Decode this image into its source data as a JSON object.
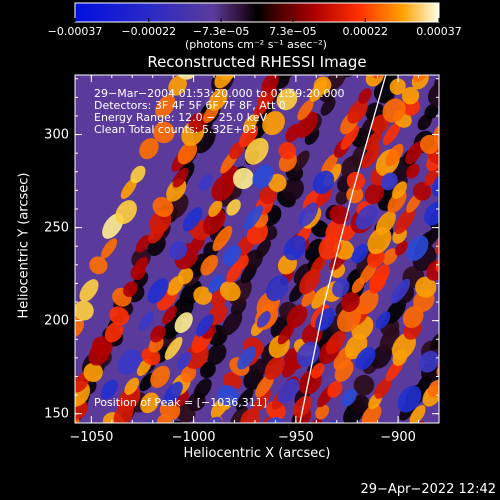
{
  "chart_data": {
    "type": "heatmap",
    "title": "Reconstructed RHESSI Image",
    "xlabel": "Heliocentric X (arcsec)",
    "ylabel": "Heliocentric Y (arcsec)",
    "xlim": [
      -1058,
      -880
    ],
    "ylim": [
      145,
      332
    ],
    "x_ticks": [
      -1050,
      -1000,
      -950,
      -900
    ],
    "x_tick_labels": [
      "−1050",
      "−1000",
      "−950",
      "−900"
    ],
    "y_ticks": [
      150,
      200,
      250,
      300
    ],
    "y_tick_labels": [
      "150",
      "200",
      "250",
      "300"
    ],
    "colorbar": {
      "range": [
        -0.00037,
        0.00037
      ],
      "ticks": [
        -0.00037,
        -0.00022,
        -7.3e-05,
        7.3e-05,
        0.00022,
        0.00037
      ],
      "tick_labels": [
        "−0.00037",
        "−0.00022",
        "−7.3e−05",
        "7.3e−05",
        "0.00022",
        "0.00037"
      ],
      "units_label": "(photons cm⁻² s⁻¹ asec⁻²)"
    },
    "annotations": [
      "29−Mar−2004 01:53:20.000 to 01:59:20.000",
      "Detectors: 3F 4F 5F 6F 7F 8F, Att 0",
      "Energy Range: 12.0 − 25.0 keV",
      "Clean     Total counts: 5.32E+03"
    ],
    "peak_label": "Position of Peak = [−1036,311]",
    "peak": [
      -1036,
      311
    ],
    "limb": [
      [
        -948,
        145
      ],
      [
        -936,
        210
      ],
      [
        -922,
        270
      ],
      [
        -906,
        332
      ]
    ]
  },
  "footer": {
    "date": "29−Apr−2022 12:42"
  },
  "colors": {
    "background": "#000000",
    "text": "#ffffff"
  }
}
